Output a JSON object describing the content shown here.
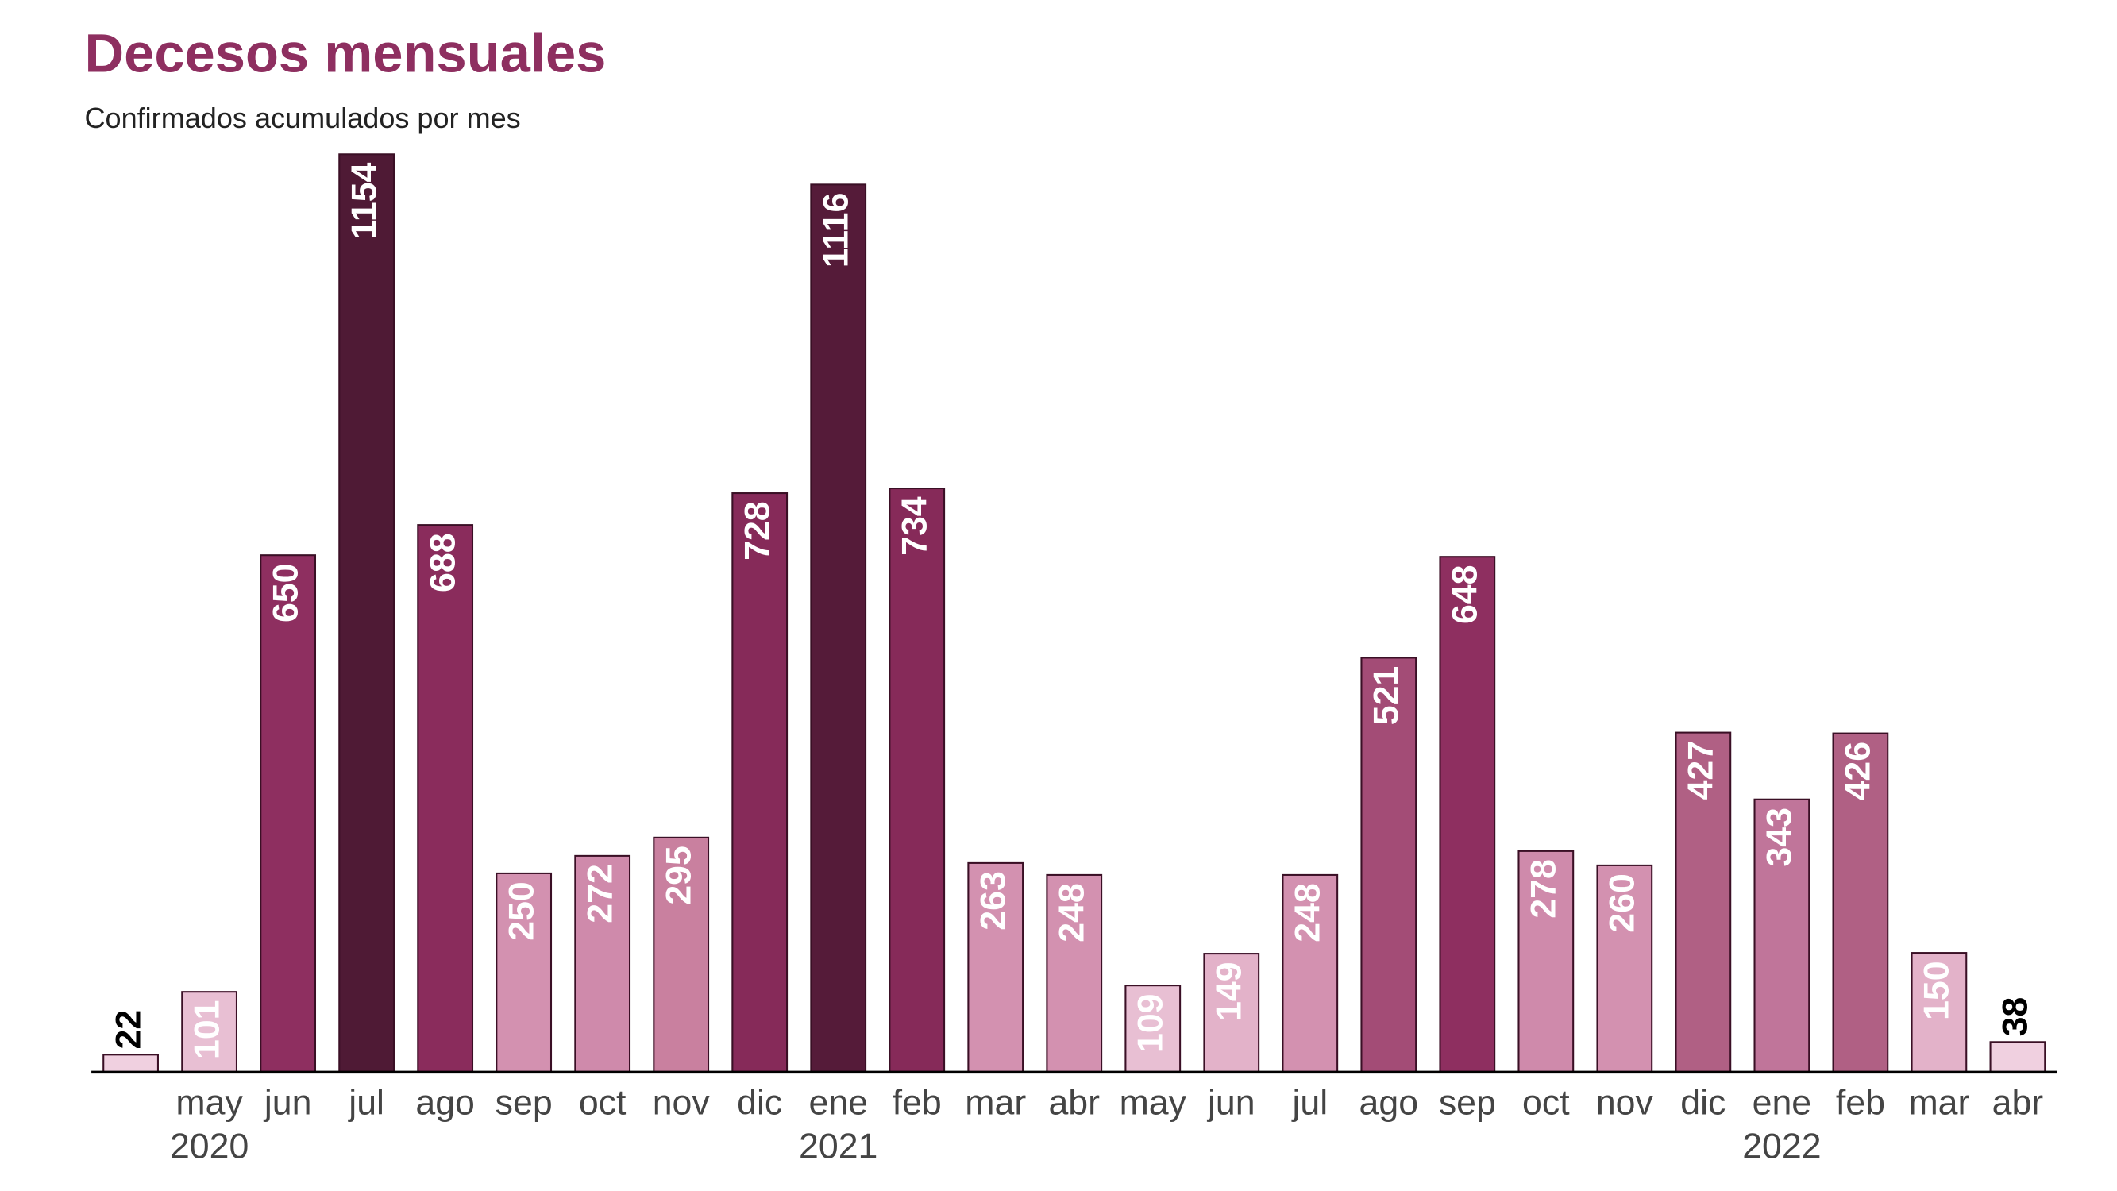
{
  "chart_data": {
    "type": "bar",
    "title": "Decesos mensuales",
    "subtitle": "Confirmados acumulados por mes",
    "categories": [
      null,
      "may",
      "jun",
      "jul",
      "ago",
      "sep",
      "oct",
      "nov",
      "dic",
      "ene",
      "feb",
      "mar",
      "abr",
      "may",
      "jun",
      "jul",
      "ago",
      "sep",
      "oct",
      "nov",
      "dic",
      "ene",
      "feb",
      "mar",
      "abr"
    ],
    "years": [
      null,
      "2020",
      null,
      null,
      null,
      null,
      null,
      null,
      null,
      "2021",
      null,
      null,
      null,
      null,
      null,
      null,
      null,
      null,
      null,
      null,
      null,
      "2022",
      null,
      null,
      null
    ],
    "values": [
      22,
      101,
      650,
      1154,
      688,
      250,
      272,
      295,
      728,
      1116,
      734,
      263,
      248,
      109,
      149,
      248,
      521,
      648,
      278,
      260,
      427,
      343,
      426,
      150,
      38
    ],
    "colors": [
      "#f0d0e0",
      "#e8bfd3",
      "#8e2f60",
      "#4f1a35",
      "#8a2c5c",
      "#d391b0",
      "#cf8aab",
      "#c9809f",
      "#862a59",
      "#551b39",
      "#862a59",
      "#d391b0",
      "#d391b0",
      "#e8bfd3",
      "#e3b2c9",
      "#d391b0",
      "#a34c76",
      "#8e2f60",
      "#cf8aab",
      "#d391b0",
      "#b06084",
      "#c0759a",
      "#b06084",
      "#e3b2c9",
      "#f0d0e0"
    ],
    "ylim": [
      0,
      1154
    ]
  }
}
